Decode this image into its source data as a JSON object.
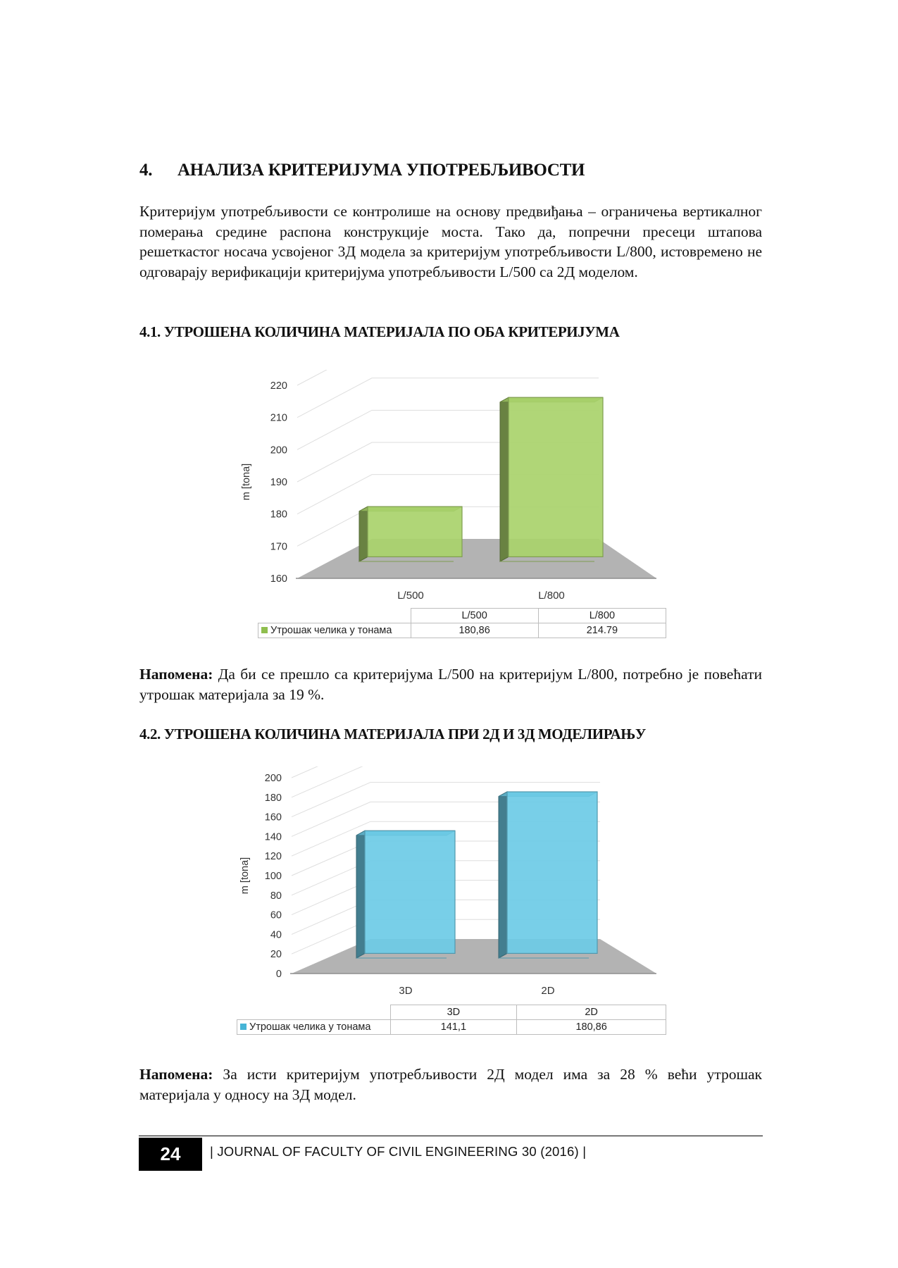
{
  "section": {
    "number": "4.",
    "title": "АНАЛИЗА КРИТЕРИЈУМА УПОТРЕБЉИВОСТИ"
  },
  "intro_paragraph": "Критеријум употребљивости се контролише на основу предвиђања – ограничења вертикалног померања средине распона конструкције моста. Тако да, попречни пресеци штапова решеткастог носача усвојеног 3Д модела за критеријум употребљивости L/800, истовремено не одговарају верификацији критеријума употребљивости L/500 са 2Д моделом.",
  "subsection1": {
    "title": "4.1. УТРОШЕНА КОЛИЧИНА МАТЕРИЈАЛА ПО ОБА КРИТЕРИЈУМА"
  },
  "subsection2": {
    "title": "4.2. УТРОШЕНА КОЛИЧИНА МАТЕРИЈАЛА ПРИ 2Д И 3Д МОДЕЛИРАЊУ"
  },
  "note1": {
    "label": "Напомена:",
    "text": " Да би се прешло са критеријума L/500 на критеријум  L/800, потребно је повећати утрошак материјала за 19 %."
  },
  "note2": {
    "label": "Напомена:",
    "text": " За исти критеријум употребљивости 2Д модел има за 28 % већи утрошак материјала у односу на 3Д модел."
  },
  "chart_data": [
    {
      "type": "bar",
      "categories": [
        "L/500",
        "L/800"
      ],
      "series": [
        {
          "name": "Утрошак челика у тонама",
          "values": [
            180.86,
            214.79
          ],
          "value_labels": [
            "180,86",
            "214.79"
          ]
        }
      ],
      "ylabel": "m [tona]",
      "ylim": [
        160,
        220
      ],
      "yticks": [
        160,
        170,
        180,
        190,
        200,
        210,
        220
      ],
      "color": "#a9d26b",
      "grid": true,
      "legend": "data-table-below"
    },
    {
      "type": "bar",
      "categories": [
        "3D",
        "2D"
      ],
      "series": [
        {
          "name": "Утрошак челика у тонама",
          "values": [
            141.1,
            180.86
          ],
          "value_labels": [
            "141,1",
            "180,86"
          ]
        }
      ],
      "ylabel": "m  [tona]",
      "ylim": [
        0,
        200
      ],
      "yticks": [
        0,
        20,
        40,
        60,
        80,
        100,
        120,
        140,
        160,
        180,
        200
      ],
      "color": "#6ccbe6",
      "grid": true,
      "legend": "data-table-below"
    }
  ],
  "footer": {
    "page_number": "24",
    "journal": "| JOURNAL OF FACULTY OF CIVIL ENGINEERING 30  (2016) |"
  }
}
